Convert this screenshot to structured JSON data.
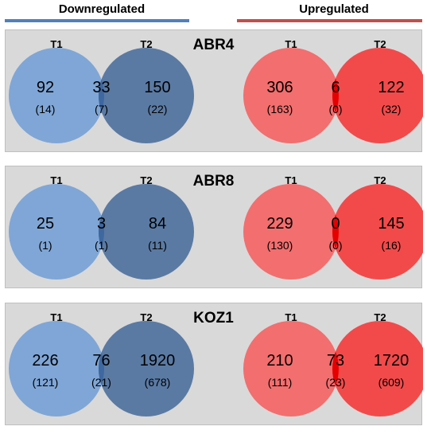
{
  "headers": {
    "down": "Downregulated",
    "up": "Upregulated",
    "down_color": "#4f81bd",
    "up_color": "#c0504d"
  },
  "colors": {
    "down_left": "#7fa6d6",
    "down_right": "#5a7aa3",
    "down_overlap": "#3f67a0",
    "up_left": "#f36e6e",
    "up_right": "#f24a4a",
    "up_overlap": "#e60000"
  },
  "panels": [
    {
      "condition": "ABR4",
      "down": {
        "label_a": "T1",
        "label_b": "T2",
        "left": "92",
        "left_sub": "(14)",
        "overlap": "33",
        "overlap_sub": "(7)",
        "right": "150",
        "right_sub": "(22)"
      },
      "up": {
        "label_a": "T1",
        "label_b": "T2",
        "left": "306",
        "left_sub": "(163)",
        "overlap": "6",
        "overlap_sub": "(0)",
        "right": "122",
        "right_sub": "(32)"
      }
    },
    {
      "condition": "ABR8",
      "down": {
        "label_a": "T1",
        "label_b": "T2",
        "left": "25",
        "left_sub": "(1)",
        "overlap": "3",
        "overlap_sub": "(1)",
        "right": "84",
        "right_sub": "(11)"
      },
      "up": {
        "label_a": "T1",
        "label_b": "T2",
        "left": "229",
        "left_sub": "(130)",
        "overlap": "0",
        "overlap_sub": "(0)",
        "right": "145",
        "right_sub": "(16)"
      }
    },
    {
      "condition": "KOZ1",
      "down": {
        "label_a": "T1",
        "label_b": "T2",
        "left": "226",
        "left_sub": "(121)",
        "overlap": "76",
        "overlap_sub": "(21)",
        "right": "1920",
        "right_sub": "(678)"
      },
      "up": {
        "label_a": "T1",
        "label_b": "T2",
        "left": "210",
        "left_sub": "(111)",
        "overlap": "73",
        "overlap_sub": "(23)",
        "right": "1720",
        "right_sub": "(609)"
      }
    }
  ]
}
